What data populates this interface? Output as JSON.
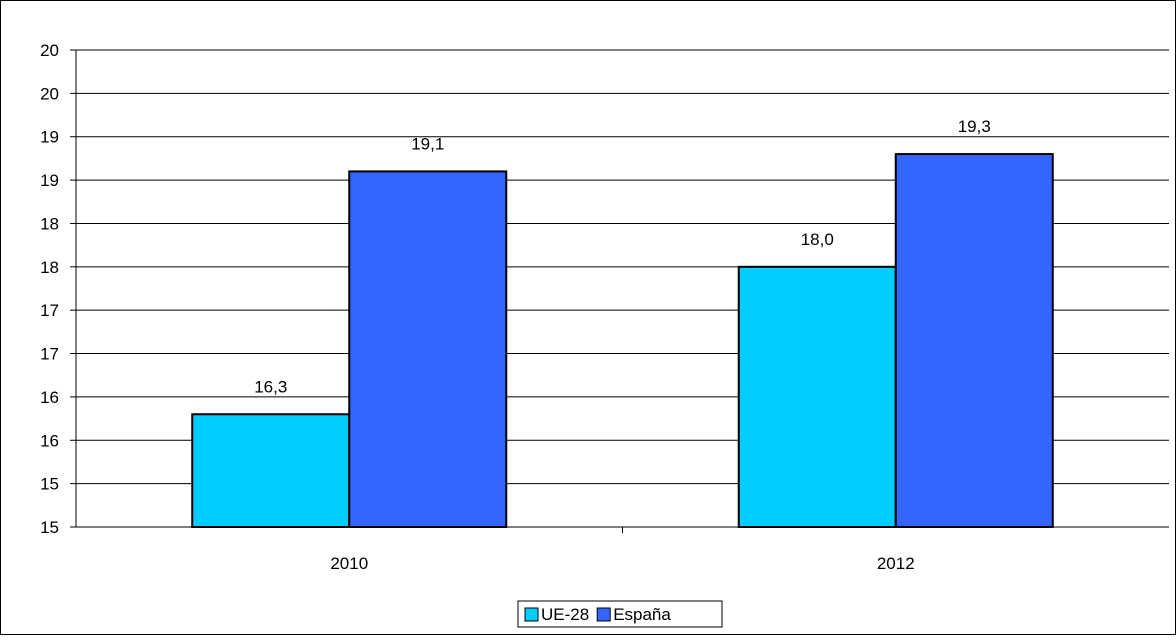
{
  "chart_data": {
    "type": "bar",
    "categories": [
      "2010",
      "2012"
    ],
    "series": [
      {
        "name": "UE-28",
        "values": [
          16.3,
          18.0
        ],
        "labels": [
          "16,3",
          "18,0"
        ],
        "color": "#00CCFF"
      },
      {
        "name": "España",
        "values": [
          19.1,
          19.3
        ],
        "labels": [
          "19,1",
          "19,3"
        ],
        "color": "#3366FF"
      }
    ],
    "y_tick_labels": [
      "15",
      "15",
      "16",
      "16",
      "17",
      "17",
      "18",
      "18",
      "19",
      "19",
      "20",
      "20"
    ],
    "ylim": [
      15,
      20.5
    ],
    "grid": true,
    "legend_position": "bottom"
  }
}
